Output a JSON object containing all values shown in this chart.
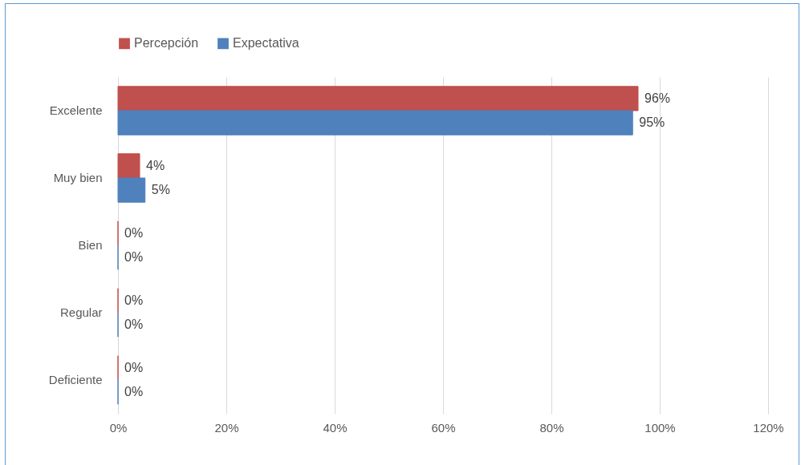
{
  "chart_data": {
    "type": "bar",
    "orientation": "horizontal",
    "categories": [
      "Excelente",
      "Muy bien",
      "Bien",
      "Regular",
      "Deficiente"
    ],
    "series": [
      {
        "name": "Percepción",
        "color": "#c0504d",
        "values": [
          96,
          4,
          0,
          0,
          0
        ],
        "value_labels": [
          "96%",
          "4%",
          "0%",
          "0%",
          "0%"
        ]
      },
      {
        "name": "Expectativa",
        "color": "#4f81bd",
        "values": [
          95,
          5,
          0,
          0,
          0
        ],
        "value_labels": [
          "95%",
          "5%",
          "0%",
          "0%",
          "0%"
        ]
      }
    ],
    "xlim": [
      0,
      120
    ],
    "xticks": [
      {
        "value": 0,
        "label": "0%"
      },
      {
        "value": 20,
        "label": "20%"
      },
      {
        "value": 40,
        "label": "40%"
      },
      {
        "value": 60,
        "label": "60%"
      },
      {
        "value": 80,
        "label": "80%"
      },
      {
        "value": 100,
        "label": "100%"
      },
      {
        "value": 120,
        "label": "120%"
      }
    ],
    "grid": "x",
    "legend": "top"
  }
}
